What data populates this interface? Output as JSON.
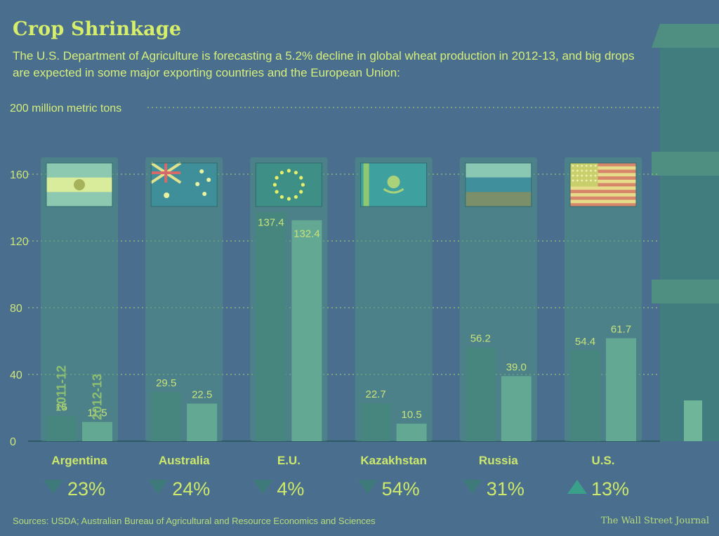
{
  "header": {
    "title": "Crop Shrinkage",
    "subtitle": "The U.S. Department of Agriculture is forecasting a 5.2% decline in global wheat production in 2012-13, and big drops are expected in some major exporting countries and the European Union:"
  },
  "footer": {
    "source": "Sources: USDA; Australian Bureau of Agricultural and Resource Economics and Sciences",
    "credit": "The Wall Street Journal"
  },
  "colors": {
    "background": "#4a6f8e",
    "panel": "#4f8f86",
    "bar_2011": "#46867e",
    "bar_2012": "#63a893",
    "text": "#d6ee6a",
    "gridline": "#9cc07a"
  },
  "chart_data": {
    "type": "bar",
    "unit_label": "200 million metric tons",
    "ylim": [
      0,
      200
    ],
    "yticks": [
      "0",
      "40",
      "80",
      "120",
      "160"
    ],
    "grid": true,
    "year_labels": [
      "2011-12",
      "2012-13"
    ],
    "categories": [
      "Argentina",
      "Australia",
      "E.U.",
      "Kazakhstan",
      "Russia",
      "U.S."
    ],
    "series": [
      {
        "name": "2011-12",
        "values": [
          15,
          29.5,
          137.4,
          22.7,
          56.2,
          54.4
        ]
      },
      {
        "name": "2012-13",
        "values": [
          11.5,
          22.5,
          132.4,
          10.5,
          39.0,
          61.7
        ]
      }
    ],
    "value_labels": [
      [
        "15",
        "11.5"
      ],
      [
        "29.5",
        "22.5"
      ],
      [
        "137.4",
        "132.4"
      ],
      [
        "22.7",
        "10.5"
      ],
      [
        "56.2",
        "39.0"
      ],
      [
        "54.4",
        "61.7"
      ]
    ],
    "changes": [
      {
        "direction": "down",
        "text": "23%"
      },
      {
        "direction": "down",
        "text": "24%"
      },
      {
        "direction": "down",
        "text": "4%"
      },
      {
        "direction": "down",
        "text": "54%"
      },
      {
        "direction": "down",
        "text": "31%"
      },
      {
        "direction": "up",
        "text": "13%"
      }
    ],
    "flags": [
      "argentina-flag",
      "australia-flag",
      "eu-flag",
      "kazakhstan-flag",
      "russia-flag",
      "us-flag"
    ]
  }
}
